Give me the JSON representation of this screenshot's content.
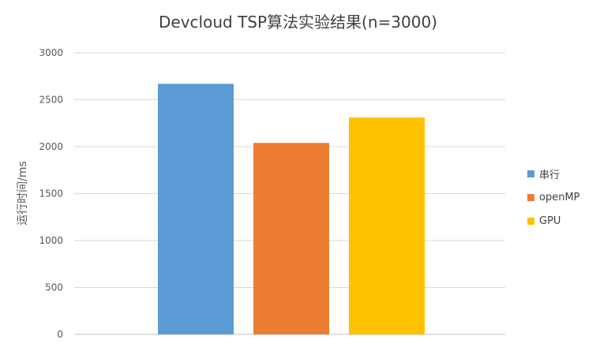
{
  "chart_data": {
    "type": "bar",
    "title": "Devcloud TSP算法实验结果(n=3000)",
    "xlabel": "",
    "ylabel": "运行时间/ms",
    "ylim": [
      0,
      3000
    ],
    "yticks": [
      0,
      500,
      1000,
      1500,
      2000,
      2500,
      3000
    ],
    "grid": true,
    "legend_position": "right",
    "categories": [
      ""
    ],
    "series": [
      {
        "name": "串行",
        "values": [
          2670
        ],
        "color": "#5B9BD5"
      },
      {
        "name": "openMP",
        "values": [
          2040
        ],
        "color": "#ED7D31"
      },
      {
        "name": "GPU",
        "values": [
          2310
        ],
        "color": "#FFC000"
      }
    ]
  }
}
